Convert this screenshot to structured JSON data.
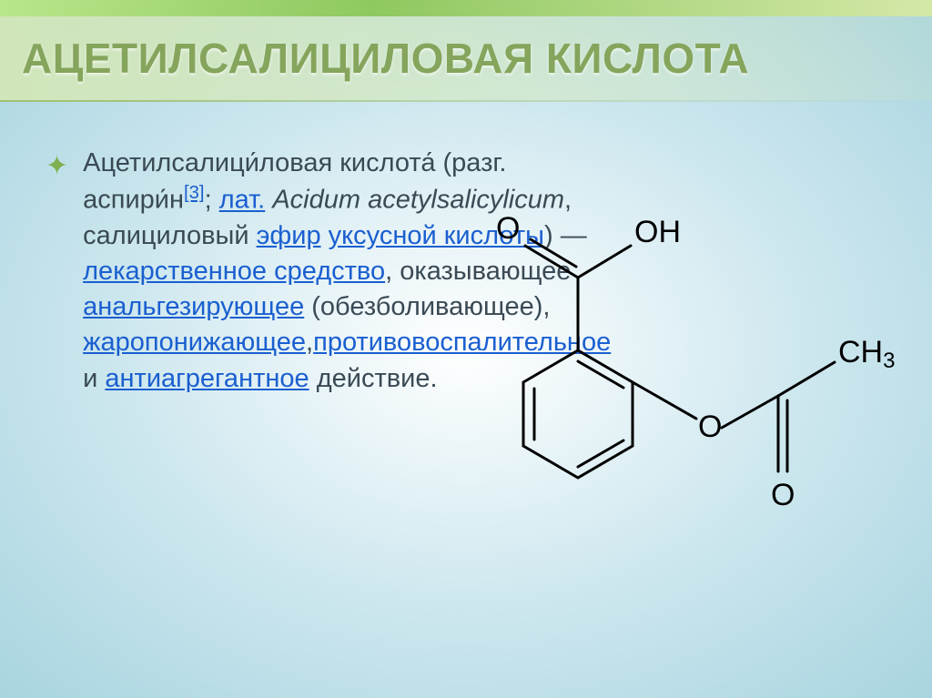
{
  "title": "АЦЕТИЛСАЛИЦИЛОВАЯ КИСЛОТА",
  "title_color": "#86a55c",
  "title_fontsize": 46,
  "accent_bar_colors": [
    "#b8e68a",
    "#8fc860",
    "#d4e8a8"
  ],
  "background_gradient": [
    "#ffffff",
    "#cfe8ef",
    "#a8d4e0"
  ],
  "bullet_color": "#7fb050",
  "body_text_color": "#3a4a55",
  "link_color": "#1a5fd0",
  "body_fontsize": 29,
  "body_parts": [
    {
      "t": "Ацетилсалици́ловая кислота́ (разг. аспири́н",
      "plain": true
    },
    {
      "t": "[3]",
      "sup_link": true
    },
    {
      "t": "; ",
      "plain": true
    },
    {
      "t": "лат.",
      "link": true
    },
    {
      "t": " ",
      "plain": true
    },
    {
      "t": "Acidum acetylsalicylicum",
      "ital": true
    },
    {
      "t": ", салициловый ",
      "plain": true
    },
    {
      "t": "эфир",
      "link": true
    },
    {
      "t": " ",
      "plain": true
    },
    {
      "t": "уксусной кислоты",
      "link": true
    },
    {
      "t": ") — ",
      "plain": true
    },
    {
      "t": "лекарственное средство",
      "link": true
    },
    {
      "t": ", оказывающее ",
      "plain": true
    },
    {
      "t": "анальгезирующее",
      "link": true
    },
    {
      "t": " (обезболивающее), ",
      "plain": true
    },
    {
      "t": "жаропонижающее",
      "link": true
    },
    {
      "t": ",",
      "plain": true
    },
    {
      "t": "противовоспалительное",
      "link": true
    },
    {
      "t": " и ",
      "plain": true
    },
    {
      "t": "антиагрегантное",
      "link": true
    },
    {
      "t": " действие.",
      "plain": true
    }
  ],
  "chemical_structure": {
    "type": "skeletal_formula",
    "stroke_color": "#000000",
    "stroke_width": 3,
    "label_fontsize": 34,
    "label_color": "#000000",
    "atoms": {
      "OH": "OH",
      "O1": "O",
      "O2": "O",
      "O3": "O",
      "CH3": "CH₃"
    }
  }
}
